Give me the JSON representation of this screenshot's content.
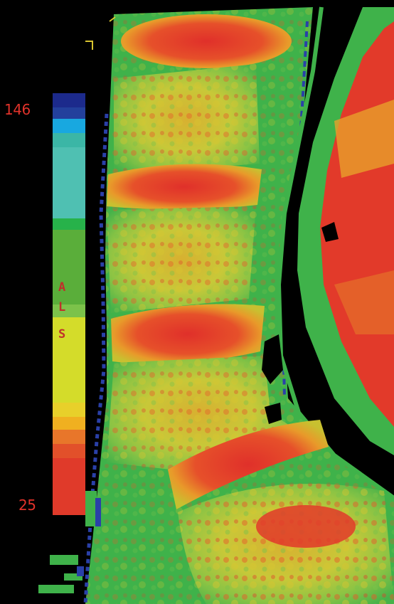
{
  "colorbar": {
    "max_label": "146",
    "min_label": "25",
    "letters": [
      "A",
      "L",
      "S"
    ],
    "colors": [
      "#1c2a8c",
      "#23409c",
      "#18a8e0",
      "#3bb6a6",
      "#4fc0b2",
      "#27b24a",
      "#5aae3a",
      "#d4dc2a",
      "#f0c020",
      "#e8762a",
      "#e03a2a"
    ]
  },
  "palette": {
    "background": "#000000",
    "tissue_green": "#3fb24a",
    "tissue_light_green": "#7cc24a",
    "tissue_yellow": "#d8cc30",
    "tissue_orange": "#e88a2a",
    "tissue_red": "#e23a2a",
    "edge_blue": "#2a40a8",
    "label_red": "#e0322a"
  }
}
